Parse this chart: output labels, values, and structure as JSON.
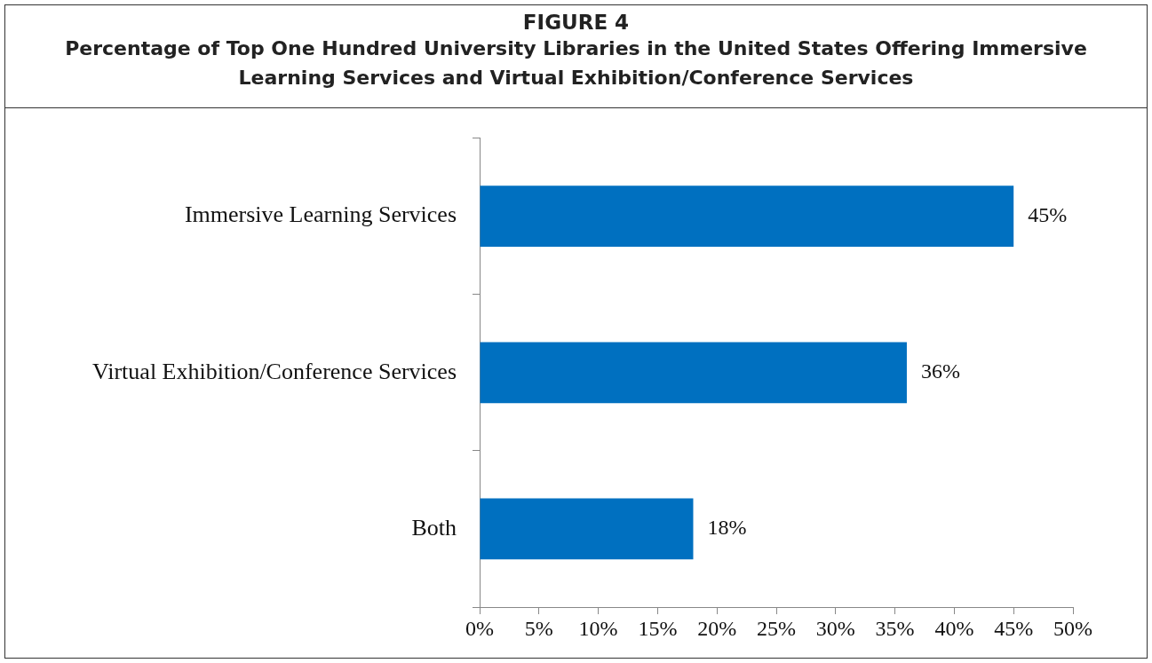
{
  "chart_data": {
    "type": "bar",
    "orientation": "horizontal",
    "title": "FIGURE 4",
    "subtitle": "Percentage of Top One Hundred University Libraries in the United States Offering Immersive Learning Services and Virtual Exhibition/Conference Services",
    "categories": [
      "Immersive Learning Services",
      "Virtual Exhibition/Conference Services",
      "Both"
    ],
    "values": [
      45,
      36,
      18
    ],
    "color": "#0070c0",
    "value_labels": [
      "45%",
      "36%",
      "18%"
    ],
    "xlim": [
      0,
      50
    ],
    "xticks": [
      {
        "value": 0,
        "label": "0%"
      },
      {
        "value": 5,
        "label": "5%"
      },
      {
        "value": 10,
        "label": "10%"
      },
      {
        "value": 15,
        "label": "15%"
      },
      {
        "value": 20,
        "label": "20%"
      },
      {
        "value": 25,
        "label": "25%"
      },
      {
        "value": 30,
        "label": "30%"
      },
      {
        "value": 35,
        "label": "35%"
      },
      {
        "value": 40,
        "label": "40%"
      },
      {
        "value": 45,
        "label": "45%"
      },
      {
        "value": 50,
        "label": "50%"
      }
    ],
    "grid": false,
    "legend": false
  }
}
